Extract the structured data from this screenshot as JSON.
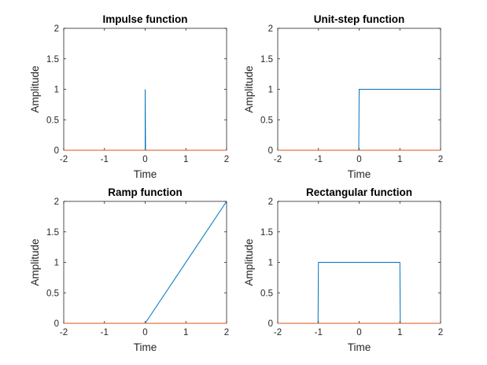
{
  "chart_data": [
    {
      "type": "line",
      "title": "Impulse function",
      "xlabel": "Time",
      "ylabel": "Amplitude",
      "xlim": [
        -2,
        2
      ],
      "ylim": [
        0,
        2
      ],
      "xticks": [
        "-2",
        "-1",
        "0",
        "1",
        "2"
      ],
      "yticks": [
        "0",
        "0.5",
        "1",
        "1.5",
        "2"
      ],
      "grid": false,
      "series": [
        {
          "color": "#0072BD",
          "x": [
            -2,
            -0.01,
            -0.01,
            0,
            0,
            0.01,
            0.01,
            2
          ],
          "y": [
            0,
            0,
            0,
            0,
            1,
            0,
            0,
            0
          ]
        },
        {
          "color": "#D95319",
          "x": [
            -2,
            2
          ],
          "y": [
            0,
            0
          ]
        }
      ]
    },
    {
      "type": "line",
      "title": "Unit-step function",
      "xlabel": "Time",
      "ylabel": "Amplitude",
      "xlim": [
        -2,
        2
      ],
      "ylim": [
        0,
        2
      ],
      "xticks": [
        "-2",
        "-1",
        "0",
        "1",
        "2"
      ],
      "yticks": [
        "0",
        "0.5",
        "1",
        "1.5",
        "2"
      ],
      "grid": false,
      "series": [
        {
          "color": "#0072BD",
          "x": [
            -2,
            -0.01,
            0,
            2
          ],
          "y": [
            0,
            0,
            1,
            1
          ]
        },
        {
          "color": "#D95319",
          "x": [
            -2,
            2
          ],
          "y": [
            0,
            0
          ]
        }
      ]
    },
    {
      "type": "line",
      "title": "Ramp function",
      "xlabel": "Time",
      "ylabel": "Amplitude",
      "xlim": [
        -2,
        2
      ],
      "ylim": [
        0,
        2
      ],
      "xticks": [
        "-2",
        "-1",
        "0",
        "1",
        "2"
      ],
      "yticks": [
        "0",
        "0.5",
        "1",
        "1.5",
        "2"
      ],
      "grid": false,
      "series": [
        {
          "color": "#0072BD",
          "x": [
            -2,
            0,
            2
          ],
          "y": [
            0,
            0,
            2
          ]
        },
        {
          "color": "#D95319",
          "x": [
            -2,
            2
          ],
          "y": [
            0,
            0
          ]
        }
      ]
    },
    {
      "type": "line",
      "title": "Rectangular function",
      "xlabel": "Time",
      "ylabel": "Amplitude",
      "xlim": [
        -2,
        2
      ],
      "ylim": [
        0,
        2
      ],
      "xticks": [
        "-2",
        "-1",
        "0",
        "1",
        "2"
      ],
      "yticks": [
        "0",
        "0.5",
        "1",
        "1.5",
        "2"
      ],
      "grid": false,
      "series": [
        {
          "color": "#0072BD",
          "x": [
            -2,
            -1.01,
            -1,
            1,
            1.01,
            2
          ],
          "y": [
            0,
            0,
            1,
            1,
            0,
            0
          ]
        },
        {
          "color": "#D95319",
          "x": [
            -2,
            2
          ],
          "y": [
            0,
            0
          ]
        }
      ]
    }
  ]
}
